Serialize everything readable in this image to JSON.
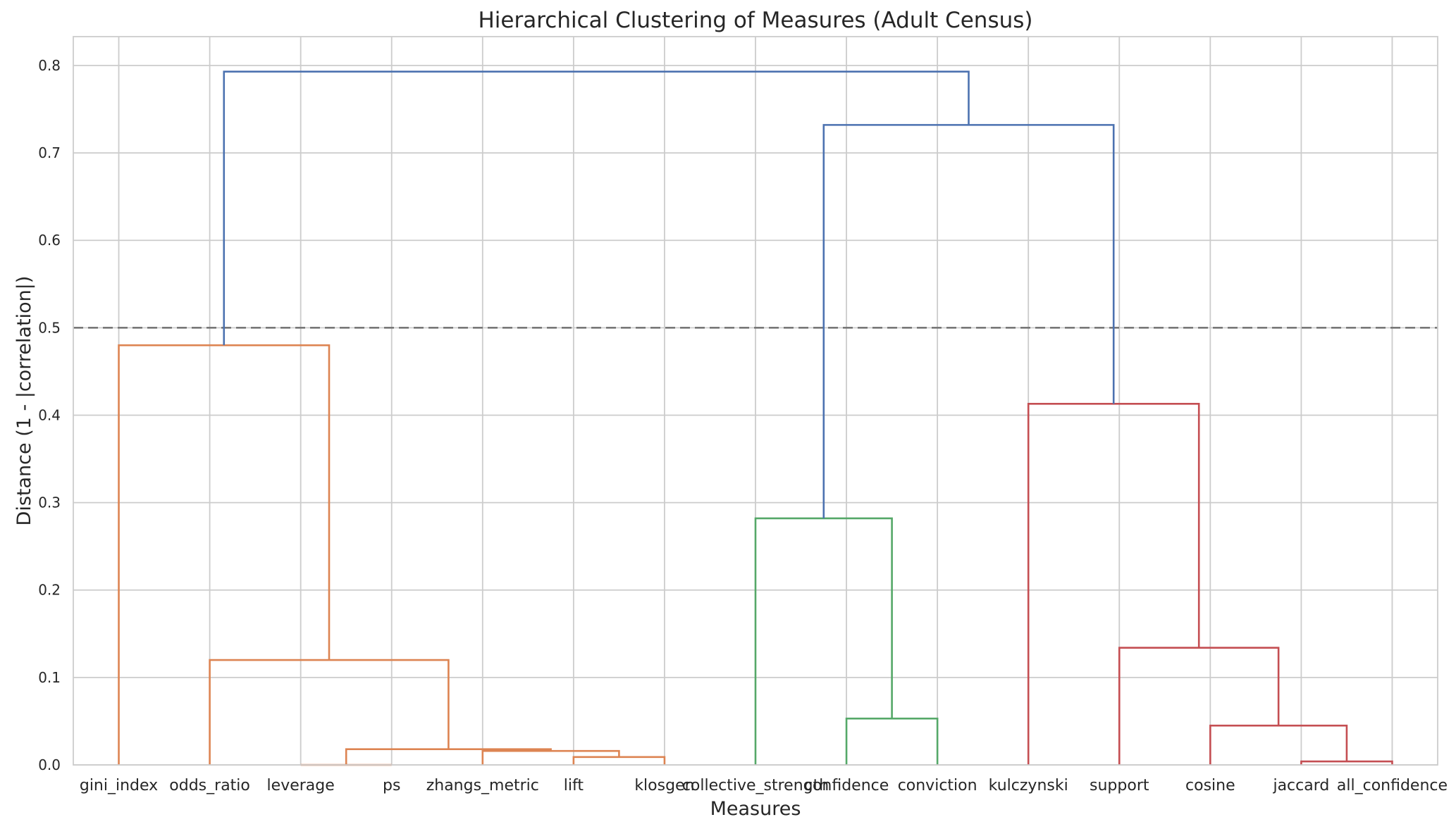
{
  "chart_data": {
    "type": "dendrogram",
    "title": "Hierarchical Clustering of Measures (Adult Census)",
    "xlabel": "Measures",
    "ylabel": "Distance (1 - |correlation|)",
    "ylim": [
      0,
      0.833
    ],
    "yticks": [
      "0.0",
      "0.1",
      "0.2",
      "0.3",
      "0.4",
      "0.5",
      "0.6",
      "0.7",
      "0.8"
    ],
    "grid": true,
    "threshold": 0.5,
    "leaves": [
      "gini_index",
      "odds_ratio",
      "leverage",
      "ps",
      "zhangs_metric",
      "lift",
      "klosgen",
      "collective_strength",
      "confidence",
      "conviction",
      "kulczynski",
      "support",
      "cosine",
      "jaccard",
      "all_confidence"
    ],
    "merges": [
      {
        "left": [
          3,
          0.0
        ],
        "right": [
          2,
          0.0
        ],
        "height": 0.0,
        "color": "#dd8452"
      },
      {
        "left": [
          5,
          0.0
        ],
        "right": [
          6,
          0.0
        ],
        "height": 0.009,
        "color": "#dd8452"
      },
      {
        "left": [
          4,
          0.0
        ],
        "right": [
          5.5,
          0.009
        ],
        "height": 0.016,
        "color": "#dd8452"
      },
      {
        "left": [
          2.5,
          0.0
        ],
        "right": [
          4.75,
          0.016
        ],
        "height": 0.018,
        "color": "#dd8452"
      },
      {
        "left": [
          1,
          0.0
        ],
        "right": [
          3.625,
          0.018
        ],
        "height": 0.12,
        "color": "#dd8452"
      },
      {
        "left": [
          0,
          0.0
        ],
        "right": [
          2.3125,
          0.12
        ],
        "height": 0.48,
        "color": "#dd8452"
      },
      {
        "left": [
          8,
          0.0
        ],
        "right": [
          9,
          0.0
        ],
        "height": 0.053,
        "color": "#55a868"
      },
      {
        "left": [
          7,
          0.0
        ],
        "right": [
          8.5,
          0.053
        ],
        "height": 0.282,
        "color": "#55a868"
      },
      {
        "left": [
          13,
          0.0
        ],
        "right": [
          14,
          0.0
        ],
        "height": 0.004,
        "color": "#c44e52"
      },
      {
        "left": [
          12,
          0.0
        ],
        "right": [
          13.5,
          0.004
        ],
        "height": 0.045,
        "color": "#c44e52"
      },
      {
        "left": [
          11,
          0.0
        ],
        "right": [
          12.75,
          0.045
        ],
        "height": 0.134,
        "color": "#c44e52"
      },
      {
        "left": [
          10,
          0.0
        ],
        "right": [
          11.875,
          0.134
        ],
        "height": 0.413,
        "color": "#c44e52"
      },
      {
        "left": [
          7.75,
          0.282
        ],
        "right": [
          10.9375,
          0.413
        ],
        "height": 0.732,
        "color": "#4c72b0"
      },
      {
        "left": [
          1.15625,
          0.48
        ],
        "right": [
          9.34375,
          0.732
        ],
        "height": 0.793,
        "color": "#4c72b0"
      }
    ],
    "colors": {
      "grid": "#cccccc",
      "threshold": "#777777",
      "text": "#262626"
    }
  }
}
